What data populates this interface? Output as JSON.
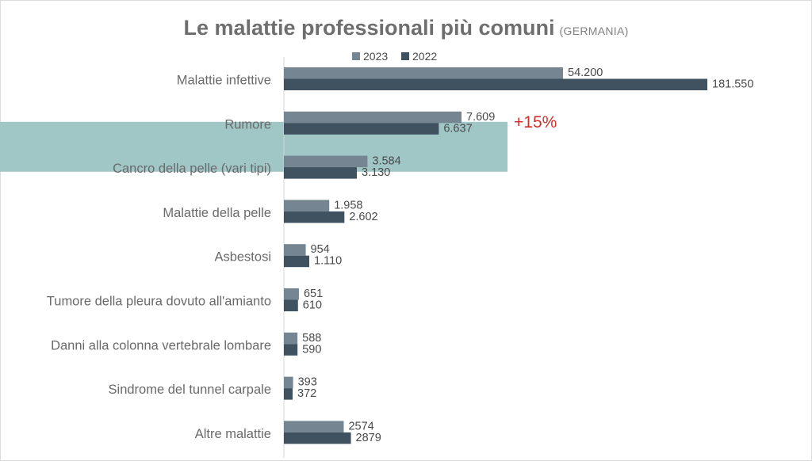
{
  "title": "Le malattie professionali più comuni",
  "subtitle": "(GERMANIA)",
  "callout": "+15%",
  "colors": {
    "series_2023": "#758591",
    "series_2022": "#405260",
    "highlight": "#a0c6c6",
    "callout": "#d1302d"
  },
  "chart_data": {
    "type": "bar",
    "orientation": "horizontal",
    "title": "Le malattie professionali più comuni (GERMANIA)",
    "categories": [
      "Malattie infettive",
      "Rumore",
      "Cancro della pelle (vari tipi)",
      "Malattie della pelle",
      "Asbestosi",
      "Tumore della pleura dovuto all'amianto",
      "Danni alla colonna vertebrale lombare",
      "Sindrome del tunnel carpale",
      "Altre malattie"
    ],
    "highlighted_category": "Rumore",
    "series": [
      {
        "name": "2023",
        "values": [
          54200,
          7609,
          3584,
          1958,
          954,
          651,
          588,
          393,
          2574
        ],
        "labels": [
          "54.200",
          "7.609",
          "3.584",
          "1.958",
          "954",
          "651",
          "588",
          "393",
          "2574"
        ]
      },
      {
        "name": "2022",
        "values": [
          181550,
          6637,
          3130,
          2602,
          1110,
          610,
          590,
          372,
          2879
        ],
        "labels": [
          "181.550",
          "6.637",
          "3.130",
          "2.602",
          "1.110",
          "610",
          "590",
          "372",
          "2879"
        ]
      }
    ],
    "axis_scale": "non-linear (visual compression of bar lengths)",
    "legend_position": "top",
    "grid": false
  }
}
